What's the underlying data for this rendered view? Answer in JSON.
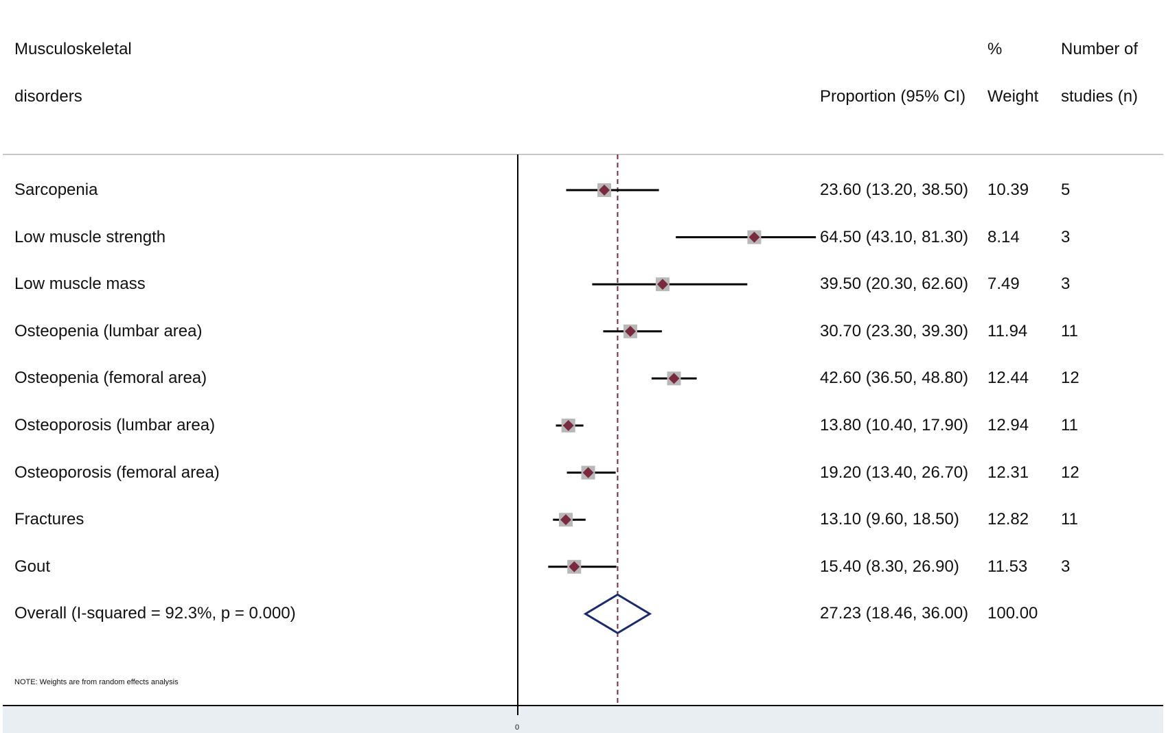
{
  "header": {
    "col_label_line1": "Musculoskeletal",
    "col_label_line2": "disorders",
    "col_ci": "Proportion (95% CI)",
    "col_weight_line1": "%",
    "col_weight_line2": "Weight",
    "col_n_line1": "Number of",
    "col_n_line2": "studies (n)"
  },
  "note": "NOTE: Weights are from random effects analysis",
  "colors": {
    "marker": "#7a2a3e",
    "box": "#b8b8b8",
    "overall": "#1a2a6c",
    "refline": "#7a2a3e",
    "footer_bg": "#e9eef2"
  },
  "chart_data": {
    "type": "forest",
    "x_tick_labels": [
      "0"
    ],
    "reference_line": 27.23,
    "rows": [
      {
        "label": "Sarcopenia",
        "est": 23.6,
        "lo": 13.2,
        "hi": 38.5,
        "ci_text": "23.60 (13.20, 38.50)",
        "weight": "10.39",
        "n": "5"
      },
      {
        "label": "Low muscle strength",
        "est": 64.5,
        "lo": 43.1,
        "hi": 81.3,
        "ci_text": "64.50 (43.10, 81.30)",
        "weight": "8.14",
        "n": "3"
      },
      {
        "label": "Low muscle mass",
        "est": 39.5,
        "lo": 20.3,
        "hi": 62.6,
        "ci_text": "39.50 (20.30, 62.60)",
        "weight": "7.49",
        "n": "3"
      },
      {
        "label": "Osteopenia (lumbar area)",
        "est": 30.7,
        "lo": 23.3,
        "hi": 39.3,
        "ci_text": "30.70 (23.30, 39.30)",
        "weight": "11.94",
        "n": "11"
      },
      {
        "label": "Osteopenia (femoral area)",
        "est": 42.6,
        "lo": 36.5,
        "hi": 48.8,
        "ci_text": "42.60 (36.50, 48.80)",
        "weight": "12.44",
        "n": "12"
      },
      {
        "label": "Osteoporosis (lumbar area)",
        "est": 13.8,
        "lo": 10.4,
        "hi": 17.9,
        "ci_text": "13.80 (10.40, 17.90)",
        "weight": "12.94",
        "n": "11"
      },
      {
        "label": "Osteoporosis (femoral area)",
        "est": 19.2,
        "lo": 13.4,
        "hi": 26.7,
        "ci_text": "19.20 (13.40, 26.70)",
        "weight": "12.31",
        "n": "12"
      },
      {
        "label": "Fractures",
        "est": 13.1,
        "lo": 9.6,
        "hi": 18.5,
        "ci_text": "13.10 (9.60, 18.50)",
        "weight": "12.82",
        "n": "11"
      },
      {
        "label": "Gout",
        "est": 15.4,
        "lo": 8.3,
        "hi": 26.9,
        "ci_text": "15.40 (8.30, 26.90)",
        "weight": "11.53",
        "n": "3"
      }
    ],
    "overall": {
      "label": "Overall  (I-squared = 92.3%, p = 0.000)",
      "est": 27.23,
      "lo": 18.46,
      "hi": 36.0,
      "ci_text": "27.23 (18.46, 36.00)",
      "weight": "100.00",
      "n": ""
    }
  }
}
